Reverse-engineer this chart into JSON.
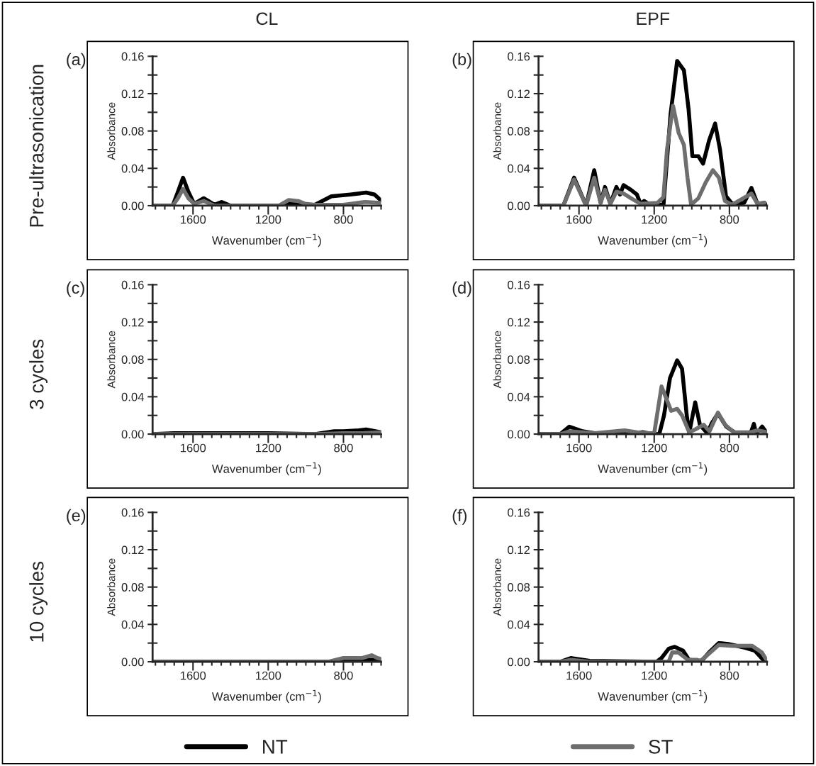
{
  "chart_data": [
    {
      "type": "line",
      "title": "CL",
      "xlabel": "Wavenumber (cm$^{−1}$)",
      "ylabel": "Absorbance",
      "annotations": [
        "(a)",
        "Pre-ultrasonication"
      ],
      "xlim": [
        1815,
        600
      ],
      "ylim": [
        0,
        0.16
      ],
      "xticks": [
        {
          "value": 1800,
          "label": null
        },
        {
          "value": 1750,
          "label": null
        },
        {
          "value": 1700,
          "label": null
        },
        {
          "value": 1650,
          "label": null
        },
        1600,
        {
          "value": 1550,
          "label": null
        },
        {
          "value": 1500,
          "label": null
        },
        {
          "value": 1450,
          "label": null
        },
        {
          "value": 1400,
          "label": null
        },
        {
          "value": 1350,
          "label": null
        },
        {
          "value": 1300,
          "label": null
        },
        {
          "value": 1250,
          "label": null
        },
        1200,
        {
          "value": 1150,
          "label": null
        },
        {
          "value": 1100,
          "label": null
        },
        {
          "value": 1050,
          "label": null
        },
        {
          "value": 1000,
          "label": null
        },
        {
          "value": 950,
          "label": null
        },
        {
          "value": 900,
          "label": null
        },
        {
          "value": 850,
          "label": null
        },
        800,
        {
          "value": 750,
          "label": null
        },
        {
          "value": 700,
          "label": null
        },
        {
          "value": 650,
          "label": null
        },
        {
          "value": 600,
          "label": null
        }
      ],
      "yticks": [
        {
          "value": 0,
          "label": "0.00"
        },
        {
          "value": 0.02,
          "label": null
        },
        {
          "value": 0.04,
          "label": "0.04"
        },
        {
          "value": 0.06,
          "label": null
        },
        {
          "value": 0.08,
          "label": "0.08"
        },
        {
          "value": 0.1,
          "label": null
        },
        {
          "value": 0.12,
          "label": "0.12"
        },
        {
          "value": 0.14,
          "label": null
        },
        {
          "value": 0.16,
          "label": "0.16"
        }
      ],
      "series": [
        {
          "color": "#000000",
          "x": [
            1815,
            1708,
            1680,
            1653,
            1625,
            1594,
            1543,
            1486,
            1448,
            1400,
            1143,
            1092,
            1003,
            952,
            864,
            762,
            679,
            635,
            603
          ],
          "values": [
            0,
            0,
            0.015,
            0.03,
            0.015,
            0.002,
            0.008,
            0.001,
            0.004,
            0,
            0,
            0.003,
            0.001,
            0.001,
            0.01,
            0.012,
            0.014,
            0.012,
            0.006
          ]
        },
        {
          "color": "#6e6e6e",
          "x": [
            1815,
            1708,
            1680,
            1653,
            1625,
            1594,
            1543,
            1486,
            1143,
            1092,
            1041,
            1003,
            952,
            800,
            686,
            603
          ],
          "values": [
            0,
            0,
            0.008,
            0.018,
            0.008,
            0.002,
            0.005,
            0,
            0,
            0.006,
            0.005,
            0.002,
            0.001,
            0.001,
            0.004,
            0.003
          ]
        }
      ]
    },
    {
      "type": "line",
      "title": "EPF",
      "xlabel": "Wavenumber (cm$^{−1}$)",
      "ylabel": "Absorbance",
      "annotations": [
        "(b)"
      ],
      "xlim": [
        1815,
        600
      ],
      "ylim": [
        0,
        0.16
      ],
      "xticks": [
        {
          "value": 1800,
          "label": null
        },
        {
          "value": 1750,
          "label": null
        },
        {
          "value": 1700,
          "label": null
        },
        {
          "value": 1650,
          "label": null
        },
        1600,
        {
          "value": 1550,
          "label": null
        },
        {
          "value": 1500,
          "label": null
        },
        {
          "value": 1450,
          "label": null
        },
        {
          "value": 1400,
          "label": null
        },
        {
          "value": 1350,
          "label": null
        },
        {
          "value": 1300,
          "label": null
        },
        {
          "value": 1250,
          "label": null
        },
        1200,
        {
          "value": 1150,
          "label": null
        },
        {
          "value": 1100,
          "label": null
        },
        {
          "value": 1050,
          "label": null
        },
        {
          "value": 1000,
          "label": null
        },
        {
          "value": 950,
          "label": null
        },
        {
          "value": 900,
          "label": null
        },
        {
          "value": 850,
          "label": null
        },
        800,
        {
          "value": 750,
          "label": null
        },
        {
          "value": 700,
          "label": null
        },
        {
          "value": 650,
          "label": null
        },
        {
          "value": 600,
          "label": null
        }
      ],
      "yticks": [
        {
          "value": 0,
          "label": "0.00"
        },
        {
          "value": 0.02,
          "label": null
        },
        {
          "value": 0.04,
          "label": "0.04"
        },
        {
          "value": 0.06,
          "label": null
        },
        {
          "value": 0.08,
          "label": "0.08"
        },
        {
          "value": 0.1,
          "label": null
        },
        {
          "value": 0.12,
          "label": "0.12"
        },
        {
          "value": 0.14,
          "label": null
        },
        {
          "value": 0.16,
          "label": "0.16"
        }
      ],
      "series": [
        {
          "color": "#000000",
          "x": [
            1815,
            1683,
            1626,
            1562,
            1519,
            1485,
            1462,
            1433,
            1401,
            1382,
            1363,
            1324,
            1292,
            1273,
            1254,
            1222,
            1183,
            1151,
            1113,
            1078,
            1042,
            1017,
            997,
            965,
            940,
            908,
            876,
            850,
            818,
            786,
            722,
            683,
            651,
            613,
            606
          ],
          "values": [
            0,
            0,
            0.03,
            0,
            0.038,
            0.003,
            0.02,
            0.002,
            0.02,
            0.012,
            0.022,
            0.017,
            0.012,
            0.002,
            0.005,
            0.001,
            0.002,
            0,
            0.098,
            0.155,
            0.145,
            0.103,
            0.053,
            0.053,
            0.045,
            0.07,
            0.088,
            0.06,
            0.01,
            0.002,
            0.003,
            0.019,
            0.002,
            0.003,
            0.001
          ]
        },
        {
          "color": "#6e6e6e",
          "x": [
            1815,
            1683,
            1626,
            1562,
            1519,
            1485,
            1462,
            1433,
            1401,
            1363,
            1324,
            1273,
            1183,
            1151,
            1132,
            1100,
            1070,
            1042,
            1023,
            1004,
            965,
            926,
            888,
            856,
            824,
            786,
            683,
            651,
            613
          ],
          "values": [
            0,
            0,
            0.028,
            0,
            0.03,
            0.003,
            0.017,
            0.002,
            0.015,
            0.013,
            0.008,
            0.002,
            0.003,
            0.009,
            0.06,
            0.107,
            0.078,
            0.065,
            0.03,
            0.001,
            0.008,
            0.025,
            0.038,
            0.03,
            0.005,
            0.001,
            0.013,
            0.002,
            0.003
          ]
        }
      ]
    },
    {
      "type": "line",
      "xlabel": "Wavenumber (cm$^{−1}$)",
      "ylabel": "Absorbance",
      "annotations": [
        "(c)",
        "3 cycles"
      ],
      "xlim": [
        1815,
        600
      ],
      "ylim": [
        0,
        0.16
      ],
      "xticks": [
        {
          "value": 1800,
          "label": null
        },
        {
          "value": 1750,
          "label": null
        },
        {
          "value": 1700,
          "label": null
        },
        {
          "value": 1650,
          "label": null
        },
        1600,
        {
          "value": 1550,
          "label": null
        },
        {
          "value": 1500,
          "label": null
        },
        {
          "value": 1450,
          "label": null
        },
        {
          "value": 1400,
          "label": null
        },
        {
          "value": 1350,
          "label": null
        },
        {
          "value": 1300,
          "label": null
        },
        {
          "value": 1250,
          "label": null
        },
        1200,
        {
          "value": 1150,
          "label": null
        },
        {
          "value": 1100,
          "label": null
        },
        {
          "value": 1050,
          "label": null
        },
        {
          "value": 1000,
          "label": null
        },
        {
          "value": 950,
          "label": null
        },
        {
          "value": 900,
          "label": null
        },
        {
          "value": 850,
          "label": null
        },
        800,
        {
          "value": 750,
          "label": null
        },
        {
          "value": 700,
          "label": null
        },
        {
          "value": 650,
          "label": null
        },
        {
          "value": 600,
          "label": null
        }
      ],
      "yticks": [
        {
          "value": 0,
          "label": "0.00"
        },
        {
          "value": 0.02,
          "label": null
        },
        {
          "value": 0.04,
          "label": "0.04"
        },
        {
          "value": 0.06,
          "label": null
        },
        {
          "value": 0.08,
          "label": "0.08"
        },
        {
          "value": 0.1,
          "label": null
        },
        {
          "value": 0.12,
          "label": "0.12"
        },
        {
          "value": 0.14,
          "label": null
        },
        {
          "value": 0.16,
          "label": "0.16"
        }
      ],
      "series": [
        {
          "color": "#000000",
          "x": [
            1815,
            1700,
            1200,
            950,
            850,
            800,
            720,
            680,
            600
          ],
          "values": [
            0,
            0.001,
            0.001,
            0,
            0.003,
            0.003,
            0.004,
            0.005,
            0.002
          ]
        },
        {
          "color": "#6e6e6e",
          "x": [
            1815,
            1200,
            950,
            800,
            700,
            600
          ],
          "values": [
            0,
            0,
            0,
            0.001,
            0.001,
            0.002
          ]
        }
      ]
    },
    {
      "type": "line",
      "xlabel": "Wavenumber (cm$^{−1}$)",
      "ylabel": "Absorbance",
      "annotations": [
        "(d)"
      ],
      "xlim": [
        1815,
        600
      ],
      "ylim": [
        0,
        0.16
      ],
      "xticks": [
        {
          "value": 1800,
          "label": null
        },
        {
          "value": 1750,
          "label": null
        },
        {
          "value": 1700,
          "label": null
        },
        {
          "value": 1650,
          "label": null
        },
        1600,
        {
          "value": 1550,
          "label": null
        },
        {
          "value": 1500,
          "label": null
        },
        {
          "value": 1450,
          "label": null
        },
        {
          "value": 1400,
          "label": null
        },
        {
          "value": 1350,
          "label": null
        },
        {
          "value": 1300,
          "label": null
        },
        {
          "value": 1250,
          "label": null
        },
        1200,
        {
          "value": 1150,
          "label": null
        },
        {
          "value": 1100,
          "label": null
        },
        {
          "value": 1050,
          "label": null
        },
        {
          "value": 1000,
          "label": null
        },
        {
          "value": 950,
          "label": null
        },
        {
          "value": 900,
          "label": null
        },
        {
          "value": 850,
          "label": null
        },
        800,
        {
          "value": 750,
          "label": null
        },
        {
          "value": 700,
          "label": null
        },
        {
          "value": 650,
          "label": null
        },
        {
          "value": 600,
          "label": null
        }
      ],
      "yticks": [
        {
          "value": 0,
          "label": "0.00"
        },
        {
          "value": 0.02,
          "label": null
        },
        {
          "value": 0.04,
          "label": "0.04"
        },
        {
          "value": 0.06,
          "label": null
        },
        {
          "value": 0.08,
          "label": "0.08"
        },
        {
          "value": 0.1,
          "label": null
        },
        {
          "value": 0.12,
          "label": "0.12"
        },
        {
          "value": 0.14,
          "label": null
        },
        {
          "value": 0.16,
          "label": "0.16"
        }
      ],
      "series": [
        {
          "color": "#000000",
          "x": [
            1815,
            1700,
            1651,
            1581,
            1517,
            1364,
            1262,
            1200,
            1173,
            1148,
            1116,
            1078,
            1052,
            1027,
            1014,
            982,
            957,
            918,
            893,
            861,
            817,
            766,
            689,
            670,
            657,
            626,
            600
          ],
          "values": [
            0,
            0,
            0.008,
            0.003,
            0.001,
            0,
            0.002,
            0,
            0,
            0.02,
            0.06,
            0.079,
            0.07,
            0.02,
            0.001,
            0.034,
            0.01,
            0.001,
            0.012,
            0.022,
            0.008,
            0.001,
            0,
            0.011,
            0,
            0.008,
            0.001
          ]
        },
        {
          "color": "#6e6e6e",
          "x": [
            1815,
            1700,
            1651,
            1517,
            1358,
            1262,
            1200,
            1161,
            1110,
            1078,
            1052,
            1014,
            982,
            937,
            906,
            861,
            823,
            778,
            689,
            651,
            600
          ],
          "values": [
            0,
            0,
            0.003,
            0.001,
            0.004,
            0.001,
            0.001,
            0.051,
            0.025,
            0.027,
            0.02,
            0.002,
            0.005,
            0.01,
            0.003,
            0.023,
            0.01,
            0.002,
            0.002,
            0.004,
            0.002
          ]
        }
      ]
    },
    {
      "type": "line",
      "xlabel": "Wavenumber (cm$^{−1}$)",
      "ylabel": "Absorbance",
      "annotations": [
        "(e)",
        "10 cycles"
      ],
      "legend": "bottom",
      "xlim": [
        1815,
        600
      ],
      "ylim": [
        0,
        0.16
      ],
      "xticks": [
        {
          "value": 1800,
          "label": null
        },
        {
          "value": 1750,
          "label": null
        },
        {
          "value": 1700,
          "label": null
        },
        {
          "value": 1650,
          "label": null
        },
        1600,
        {
          "value": 1550,
          "label": null
        },
        {
          "value": 1500,
          "label": null
        },
        {
          "value": 1450,
          "label": null
        },
        {
          "value": 1400,
          "label": null
        },
        {
          "value": 1350,
          "label": null
        },
        {
          "value": 1300,
          "label": null
        },
        {
          "value": 1250,
          "label": null
        },
        1200,
        {
          "value": 1150,
          "label": null
        },
        {
          "value": 1100,
          "label": null
        },
        {
          "value": 1050,
          "label": null
        },
        {
          "value": 1000,
          "label": null
        },
        {
          "value": 950,
          "label": null
        },
        {
          "value": 900,
          "label": null
        },
        {
          "value": 850,
          "label": null
        },
        800,
        {
          "value": 750,
          "label": null
        },
        {
          "value": 700,
          "label": null
        },
        {
          "value": 650,
          "label": null
        },
        {
          "value": 600,
          "label": null
        }
      ],
      "yticks": [
        {
          "value": 0,
          "label": "0.00"
        },
        {
          "value": 0.02,
          "label": null
        },
        {
          "value": 0.04,
          "label": "0.04"
        },
        {
          "value": 0.06,
          "label": null
        },
        {
          "value": 0.08,
          "label": "0.08"
        },
        {
          "value": 0.1,
          "label": null
        },
        {
          "value": 0.12,
          "label": "0.12"
        },
        {
          "value": 0.14,
          "label": null
        },
        {
          "value": 0.16,
          "label": "0.16"
        }
      ],
      "series": [
        {
          "name": "NT",
          "color": "#000000",
          "x": [
            1815,
            1200,
            850,
            800,
            700,
            600
          ],
          "values": [
            0,
            0,
            0,
            0.001,
            0.002,
            0.002
          ]
        },
        {
          "color": "#6e6e6e",
          "x": [
            1815,
            1200,
            880,
            800,
            700,
            650,
            620,
            600
          ],
          "values": [
            0,
            0,
            0,
            0.004,
            0.004,
            0.007,
            0.004,
            0.003
          ]
        }
      ]
    },
    {
      "type": "line",
      "xlabel": "Wavenumber (cm$^{−1}$)",
      "ylabel": "Absorbance",
      "annotations": [
        "(f)"
      ],
      "legend": "bottom",
      "xlim": [
        1815,
        600
      ],
      "ylim": [
        0,
        0.16
      ],
      "xticks": [
        {
          "value": 1800,
          "label": null
        },
        {
          "value": 1750,
          "label": null
        },
        {
          "value": 1700,
          "label": null
        },
        {
          "value": 1650,
          "label": null
        },
        1600,
        {
          "value": 1550,
          "label": null
        },
        {
          "value": 1500,
          "label": null
        },
        {
          "value": 1450,
          "label": null
        },
        {
          "value": 1400,
          "label": null
        },
        {
          "value": 1350,
          "label": null
        },
        {
          "value": 1300,
          "label": null
        },
        {
          "value": 1250,
          "label": null
        },
        1200,
        {
          "value": 1150,
          "label": null
        },
        {
          "value": 1100,
          "label": null
        },
        {
          "value": 1050,
          "label": null
        },
        {
          "value": 1000,
          "label": null
        },
        {
          "value": 950,
          "label": null
        },
        {
          "value": 900,
          "label": null
        },
        {
          "value": 850,
          "label": null
        },
        800,
        {
          "value": 750,
          "label": null
        },
        {
          "value": 700,
          "label": null
        },
        {
          "value": 650,
          "label": null
        },
        {
          "value": 600,
          "label": null
        }
      ],
      "yticks": [
        {
          "value": 0,
          "label": "0.00"
        },
        {
          "value": 0.02,
          "label": null
        },
        {
          "value": 0.04,
          "label": "0.04"
        },
        {
          "value": 0.06,
          "label": null
        },
        {
          "value": 0.08,
          "label": "0.08"
        },
        {
          "value": 0.1,
          "label": null
        },
        {
          "value": 0.12,
          "label": "0.12"
        },
        {
          "value": 0.14,
          "label": null
        },
        {
          "value": 0.16,
          "label": "0.16"
        }
      ],
      "series": [
        {
          "color": "#000000",
          "x": [
            1815,
            1700,
            1644,
            1543,
            1187,
            1161,
            1123,
            1091,
            1047,
            1015,
            971,
            952,
            908,
            857,
            806,
            717,
            666,
            634,
            609
          ],
          "values": [
            0,
            0,
            0.004,
            0.001,
            0,
            0.004,
            0.014,
            0.016,
            0.012,
            0.002,
            0.001,
            0,
            0.01,
            0.02,
            0.019,
            0.015,
            0.012,
            0.005,
            0
          ]
        },
        {
          "name": "ST",
          "color": "#6e6e6e",
          "x": [
            1815,
            1700,
            1644,
            1543,
            1187,
            1123,
            1104,
            1072,
            1021,
            971,
            952,
            857,
            780,
            679,
            628,
            603
          ],
          "values": [
            0,
            0,
            0.002,
            0,
            0,
            0,
            0.01,
            0.01,
            0.002,
            0.002,
            0.001,
            0.018,
            0.017,
            0.017,
            0.01,
            0.002
          ]
        }
      ]
    }
  ]
}
